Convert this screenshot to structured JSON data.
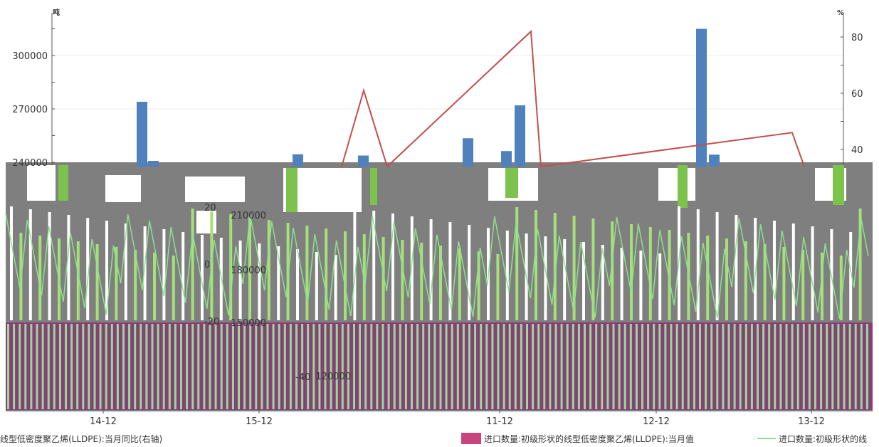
{
  "colors": {
    "bars_blue": "#4f81bd",
    "line_red": "#c0504d",
    "bars_purple": "#8c3c7a",
    "line_green": "#8ee08e",
    "legend_pink": "#c9457d",
    "glitch_gray": "#7f7f7f"
  },
  "chart_data": {
    "type": "bar",
    "left_axis_unit": "吨",
    "right_axis_unit": "%",
    "left_ticks": [
      "300000",
      "270000",
      "240000",
      "210000",
      "180000",
      "150000",
      "120000"
    ],
    "right_ticks": [
      "80",
      "60",
      "40",
      "20",
      "0",
      "-20",
      "-40"
    ],
    "x_labels": [
      "14-12",
      "15-12",
      "11-12",
      "12-12",
      "13-12"
    ],
    "ylim_left": [
      90000,
      320000
    ],
    "ylim_right": [
      -40,
      85
    ],
    "legend": [
      "线型低密度聚乙烯(LLDPE):当月同比(右轴)",
      "进口数量:初级形状的线型低密度聚乙烯(LLDPE):当月值",
      "进口数量:初级形状的线"
    ],
    "series": [
      {
        "kind": "bar",
        "axis": "left",
        "values": [
          274000,
          240800,
          244500,
          243800,
          253500,
          246300,
          272000,
          315000,
          244300
        ]
      },
      {
        "kind": "line",
        "axis": "right",
        "values": [
          2,
          61,
          -5,
          82,
          -8,
          46,
          2
        ]
      }
    ]
  }
}
